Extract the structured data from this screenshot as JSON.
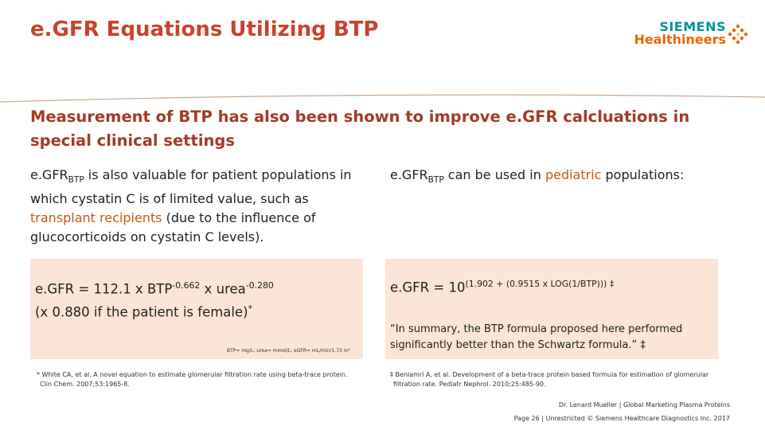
{
  "slide": {
    "title": "e.GFR Equations Utilizing BTP",
    "heading": "Measurement of BTP has also been shown to improve e.GFR calcluations in special clinical settings"
  },
  "logo": {
    "line1": "SIEMENS",
    "line2": "Healthineers",
    "colors": {
      "teal": "#009999",
      "orange": "#ec6602"
    }
  },
  "left": {
    "intro_prefix": "e.GFR",
    "intro_sub": "BTP",
    "intro_mid": " is also valuable for patient populations in which cystatin C is of limited value, such as ",
    "intro_highlight": "transplant recipients",
    "intro_suffix": " (due to the influence of glucocorticoids on cystatin C levels).",
    "equation_part1": "e.GFR = 112.1 x BTP",
    "equation_exp1": "-0.662",
    "equation_part2": " x urea",
    "equation_exp2": "-0.280",
    "equation_line2": "(x 0.880 if the patient is female)",
    "equation_mark": "*",
    "units_note": "BTP= mg/L; urea= mmol/L; eGFR= mL/min/1.73 m²",
    "footnote_line1": "* White CA, et al. A novel equation to estimate glomerular filtration rate using beta-trace protein.",
    "footnote_line2": "Clin Chem. 2007;53:1965-8."
  },
  "right": {
    "intro_prefix": "e.GFR",
    "intro_sub": "BTP",
    "intro_mid": " can be used in ",
    "intro_highlight": "pediatric",
    "intro_suffix": " populations:",
    "equation_base": "e.GFR = 10",
    "equation_exp": "(1.902 + (0.9515 x LOG(1/BTP)))",
    "equation_mark": " ‡",
    "quote": "“In summary, the BTP formula proposed here performed significantly better than the Schwartz formula.” ‡",
    "footnote_line1": "‡ Benlamri A, et al. Development of a beta-trace protein based formula for estimation of glomerular",
    "footnote_line2": "filtration rate. Pediatr Nephrol. 2010;25:485-90."
  },
  "footer": {
    "author": "Dr. Lenard Mueller | Global Marketing Plasma Proteins",
    "page_info": "Page 26 | Unrestricted © Siemens Healthcare Diagnostics Inc. 2017"
  },
  "colors": {
    "title": "#c8432b",
    "heading": "#a33a27",
    "highlight": "#c55a11",
    "panel": "#fbe5d6",
    "divider": "#c9a98a"
  }
}
